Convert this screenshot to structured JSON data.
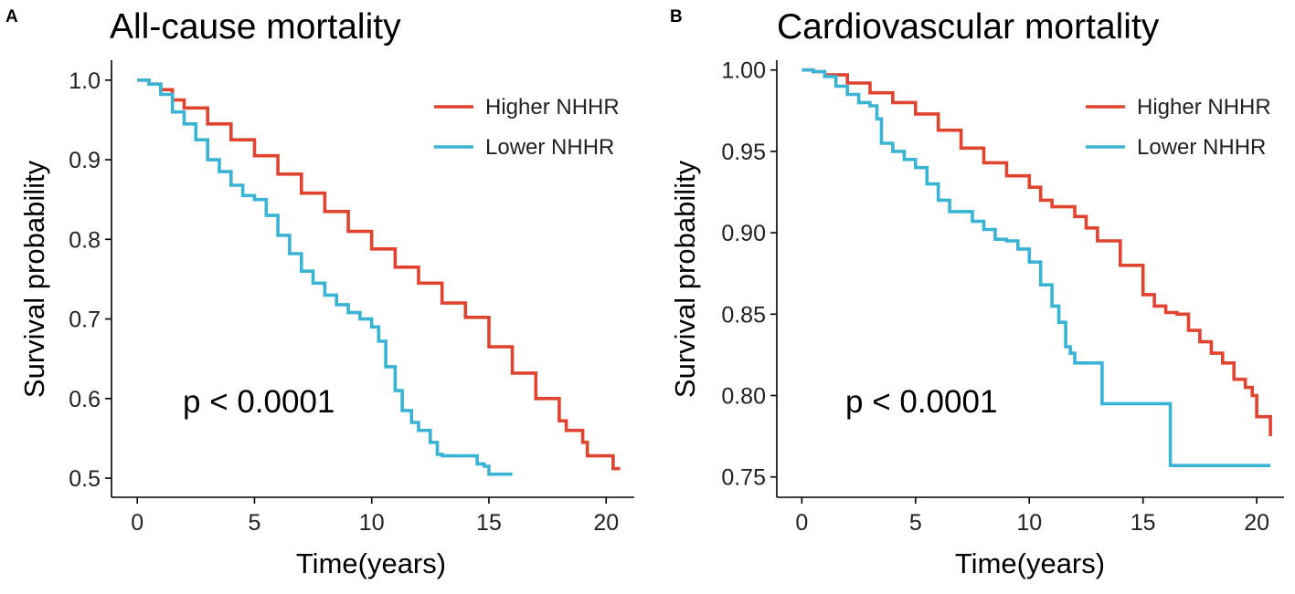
{
  "colors": {
    "higher": "#e0432e",
    "lower": "#3ab4d4"
  },
  "chart_data": [
    {
      "panel": "A",
      "type": "line",
      "title": "All-cause mortality",
      "xlabel": "Time(years)",
      "ylabel": "Survival probability",
      "xlim": [
        -1.1,
        21.2
      ],
      "ylim": [
        0.476,
        1.025
      ],
      "xticks": [
        0,
        5,
        10,
        15,
        20
      ],
      "yticks": [
        0.5,
        0.6,
        0.7,
        0.8,
        0.9,
        1.0
      ],
      "ytick_labels": [
        "0.5",
        "0.6",
        "0.7",
        "0.8",
        "0.9",
        "1.0"
      ],
      "annotation": "p < 0.0001",
      "legend_position": "top-right",
      "series": [
        {
          "name": "Higher NHHR",
          "color": "#e0432e",
          "x": [
            0,
            0.5,
            1,
            1.5,
            2,
            3,
            4,
            5,
            6,
            7,
            8,
            9,
            10,
            11,
            12,
            13,
            14,
            15,
            16,
            17,
            18,
            18.3,
            19,
            19.2,
            20,
            20.3,
            20.6
          ],
          "y": [
            1.0,
            0.995,
            0.988,
            0.975,
            0.965,
            0.945,
            0.925,
            0.905,
            0.882,
            0.858,
            0.835,
            0.81,
            0.788,
            0.765,
            0.745,
            0.72,
            0.702,
            0.665,
            0.632,
            0.6,
            0.572,
            0.56,
            0.545,
            0.528,
            0.528,
            0.512,
            0.512
          ]
        },
        {
          "name": "Lower NHHR",
          "color": "#3ab4d4",
          "x": [
            0,
            0.5,
            1,
            1.5,
            2,
            2.5,
            3,
            3.5,
            4,
            4.5,
            5,
            5.5,
            6,
            6.5,
            7,
            7.5,
            8,
            8.5,
            9,
            9.5,
            10,
            10.3,
            10.6,
            11,
            11.3,
            11.7,
            12,
            12.5,
            12.8,
            13,
            13.5,
            14,
            14.5,
            14.8,
            15,
            16
          ],
          "y": [
            1.0,
            0.995,
            0.982,
            0.96,
            0.945,
            0.925,
            0.9,
            0.885,
            0.868,
            0.855,
            0.85,
            0.83,
            0.805,
            0.782,
            0.76,
            0.745,
            0.73,
            0.718,
            0.708,
            0.7,
            0.69,
            0.672,
            0.64,
            0.61,
            0.585,
            0.57,
            0.56,
            0.545,
            0.53,
            0.528,
            0.528,
            0.528,
            0.518,
            0.515,
            0.505,
            0.505
          ]
        }
      ]
    },
    {
      "panel": "B",
      "type": "line",
      "title": "Cardiovascular mortality",
      "xlabel": "Time(years)",
      "ylabel": "Survival probability",
      "xlim": [
        -1.1,
        21.2
      ],
      "ylim": [
        0.7375,
        1.006
      ],
      "xticks": [
        0,
        5,
        10,
        15,
        20
      ],
      "yticks": [
        0.75,
        0.8,
        0.85,
        0.9,
        0.95,
        1.0
      ],
      "ytick_labels": [
        "0.75",
        "0.80",
        "0.85",
        "0.90",
        "0.95",
        "1.00"
      ],
      "annotation": "p < 0.0001",
      "legend_position": "top-right",
      "series": [
        {
          "name": "Higher NHHR",
          "color": "#e0432e",
          "x": [
            0,
            0.5,
            1,
            2,
            3,
            4,
            5,
            6,
            7,
            8,
            9,
            10,
            10.5,
            11,
            12,
            12.5,
            13,
            14,
            15,
            15.5,
            16,
            16.5,
            17,
            17.5,
            18,
            18.5,
            19,
            19.5,
            19.8,
            20,
            20.5,
            20.6
          ],
          "y": [
            1.0,
            0.999,
            0.997,
            0.992,
            0.986,
            0.98,
            0.973,
            0.963,
            0.952,
            0.943,
            0.935,
            0.928,
            0.92,
            0.916,
            0.91,
            0.903,
            0.895,
            0.88,
            0.862,
            0.855,
            0.851,
            0.85,
            0.84,
            0.833,
            0.826,
            0.82,
            0.81,
            0.805,
            0.8,
            0.787,
            0.787,
            0.775
          ]
        },
        {
          "name": "Lower NHHR",
          "color": "#3ab4d4",
          "x": [
            0,
            0.5,
            1,
            1.5,
            2,
            2.5,
            3,
            3.3,
            3.5,
            4,
            4.5,
            5,
            5.5,
            6,
            6.5,
            7,
            7.5,
            8,
            8.5,
            9,
            9.5,
            10,
            10.5,
            11,
            11.3,
            11.6,
            11.8,
            12,
            12.5,
            13,
            13.2,
            14,
            15,
            16,
            16.2,
            17,
            20.6
          ],
          "y": [
            1.0,
            0.999,
            0.996,
            0.99,
            0.985,
            0.98,
            0.978,
            0.97,
            0.955,
            0.95,
            0.945,
            0.94,
            0.93,
            0.92,
            0.913,
            0.913,
            0.907,
            0.902,
            0.896,
            0.895,
            0.89,
            0.882,
            0.868,
            0.855,
            0.845,
            0.83,
            0.826,
            0.82,
            0.82,
            0.82,
            0.795,
            0.795,
            0.795,
            0.795,
            0.757,
            0.757,
            0.757
          ]
        }
      ]
    }
  ]
}
